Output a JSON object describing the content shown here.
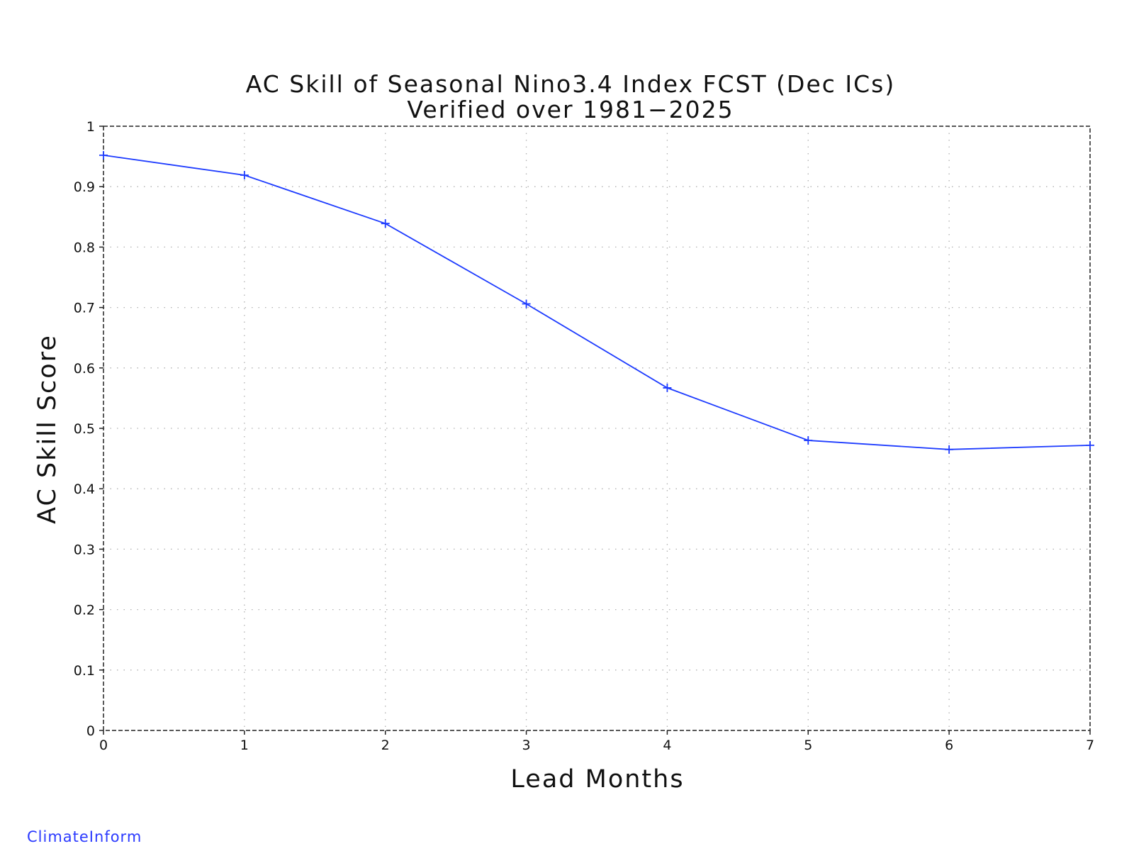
{
  "chart_data": {
    "type": "line",
    "title": "AC Skill of Seasonal Nino3.4 Index FCST (Dec ICs)",
    "subtitle": "Verified over 1981−2025",
    "xlabel": "Lead Months",
    "ylabel": "AC Skill Score",
    "xlim": [
      0,
      7
    ],
    "ylim": [
      0,
      1
    ],
    "x_ticks": [
      "0",
      "1",
      "2",
      "3",
      "4",
      "5",
      "6",
      "7"
    ],
    "y_ticks": [
      "0",
      "0.1",
      "0.2",
      "0.3",
      "0.4",
      "0.5",
      "0.6",
      "0.7",
      "0.8",
      "0.9",
      "1"
    ],
    "grid": true,
    "series": [
      {
        "x": [
          0,
          1,
          2,
          3,
          4,
          5,
          6,
          7
        ],
        "values": [
          0.952,
          0.919,
          0.839,
          0.706,
          0.567,
          0.48,
          0.465,
          0.472
        ],
        "color": "#1e3cff",
        "marker": "plus"
      }
    ]
  },
  "footer": {
    "brand": "ClimateInform"
  }
}
